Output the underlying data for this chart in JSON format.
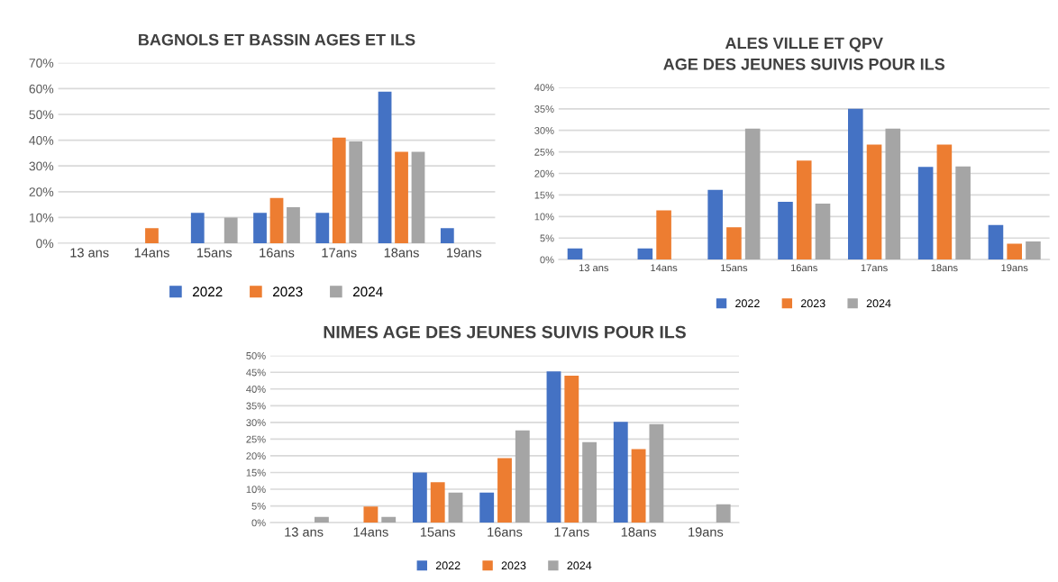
{
  "chart_data": [
    {
      "type": "bar",
      "title": "BAGNOLS ET BASSIN AGES ET ILS",
      "categories": [
        "13 ans",
        "14ans",
        "15ans",
        "16ans",
        "17ans",
        "18ans",
        "19ans"
      ],
      "series": [
        {
          "name": "2022",
          "color": "#4472c4",
          "values": [
            null,
            null,
            11.8,
            11.8,
            11.8,
            58.8,
            5.9
          ]
        },
        {
          "name": "2023",
          "color": "#ed7d31",
          "values": [
            null,
            5.9,
            null,
            17.6,
            41,
            35.5,
            null
          ]
        },
        {
          "name": "2024",
          "color": "#a5a5a5",
          "values": [
            null,
            null,
            10,
            14,
            39.5,
            35.5,
            null
          ]
        }
      ],
      "ylim": [
        0,
        70
      ],
      "yticks": [
        {
          "value": 0,
          "label": "0%"
        },
        {
          "value": 10,
          "label": "10%"
        },
        {
          "value": 20,
          "label": "20%"
        },
        {
          "value": 30,
          "label": "30%"
        },
        {
          "value": 40,
          "label": "40%"
        },
        {
          "value": 50,
          "label": "50%"
        },
        {
          "value": 60,
          "label": "60%"
        },
        {
          "value": 70,
          "label": "70%"
        }
      ],
      "grid": "y",
      "legend": "bottom"
    },
    {
      "type": "bar",
      "title": "ALES VILLE ET QPV\nAGE DES JEUNES SUIVIS POUR ILS",
      "categories": [
        "13 ans",
        "14ans",
        "15ans",
        "16ans",
        "17ans",
        "18ans",
        "19ans"
      ],
      "series": [
        {
          "name": "2022",
          "color": "#4472c4",
          "values": [
            2.6,
            2.6,
            16.2,
            13.4,
            35,
            21.5,
            8
          ]
        },
        {
          "name": "2023",
          "color": "#ed7d31",
          "values": [
            null,
            11.4,
            7.5,
            23,
            26.7,
            26.7,
            3.7
          ]
        },
        {
          "name": "2024",
          "color": "#a5a5a5",
          "values": [
            null,
            null,
            30.4,
            13,
            30.4,
            21.6,
            4.2
          ]
        }
      ],
      "ylim": [
        0,
        40
      ],
      "yticks": [
        {
          "value": 0,
          "label": "0%"
        },
        {
          "value": 5,
          "label": "5%"
        },
        {
          "value": 10,
          "label": "10%"
        },
        {
          "value": 15,
          "label": "15%"
        },
        {
          "value": 20,
          "label": "20%"
        },
        {
          "value": 25,
          "label": "25%"
        },
        {
          "value": 30,
          "label": "30%"
        },
        {
          "value": 35,
          "label": "35%"
        },
        {
          "value": 40,
          "label": "40%"
        }
      ],
      "grid": "y",
      "legend": "bottom"
    },
    {
      "type": "bar",
      "title": "NIMES AGE DES JEUNES SUIVIS POUR ILS",
      "categories": [
        "13 ans",
        "14ans",
        "15ans",
        "16ans",
        "17ans",
        "18ans",
        "19ans"
      ],
      "series": [
        {
          "name": "2022",
          "color": "#4472c4",
          "values": [
            null,
            null,
            15,
            9,
            45.3,
            30.2,
            null
          ]
        },
        {
          "name": "2023",
          "color": "#ed7d31",
          "values": [
            null,
            4.8,
            12.1,
            19.3,
            44,
            22,
            null
          ]
        },
        {
          "name": "2024",
          "color": "#a5a5a5",
          "values": [
            1.7,
            1.7,
            9,
            27.6,
            24.1,
            29.5,
            5.5
          ]
        }
      ],
      "ylim": [
        0,
        50
      ],
      "yticks": [
        {
          "value": 0,
          "label": "0%"
        },
        {
          "value": 5,
          "label": "5%"
        },
        {
          "value": 10,
          "label": "10%"
        },
        {
          "value": 15,
          "label": "15%"
        },
        {
          "value": 20,
          "label": "20%"
        },
        {
          "value": 25,
          "label": "25%"
        },
        {
          "value": 30,
          "label": "30%"
        },
        {
          "value": 35,
          "label": "35%"
        },
        {
          "value": 40,
          "label": "40%"
        },
        {
          "value": 45,
          "label": "45%"
        },
        {
          "value": 50,
          "label": "50%"
        }
      ],
      "grid": "y",
      "legend": "bottom"
    }
  ]
}
